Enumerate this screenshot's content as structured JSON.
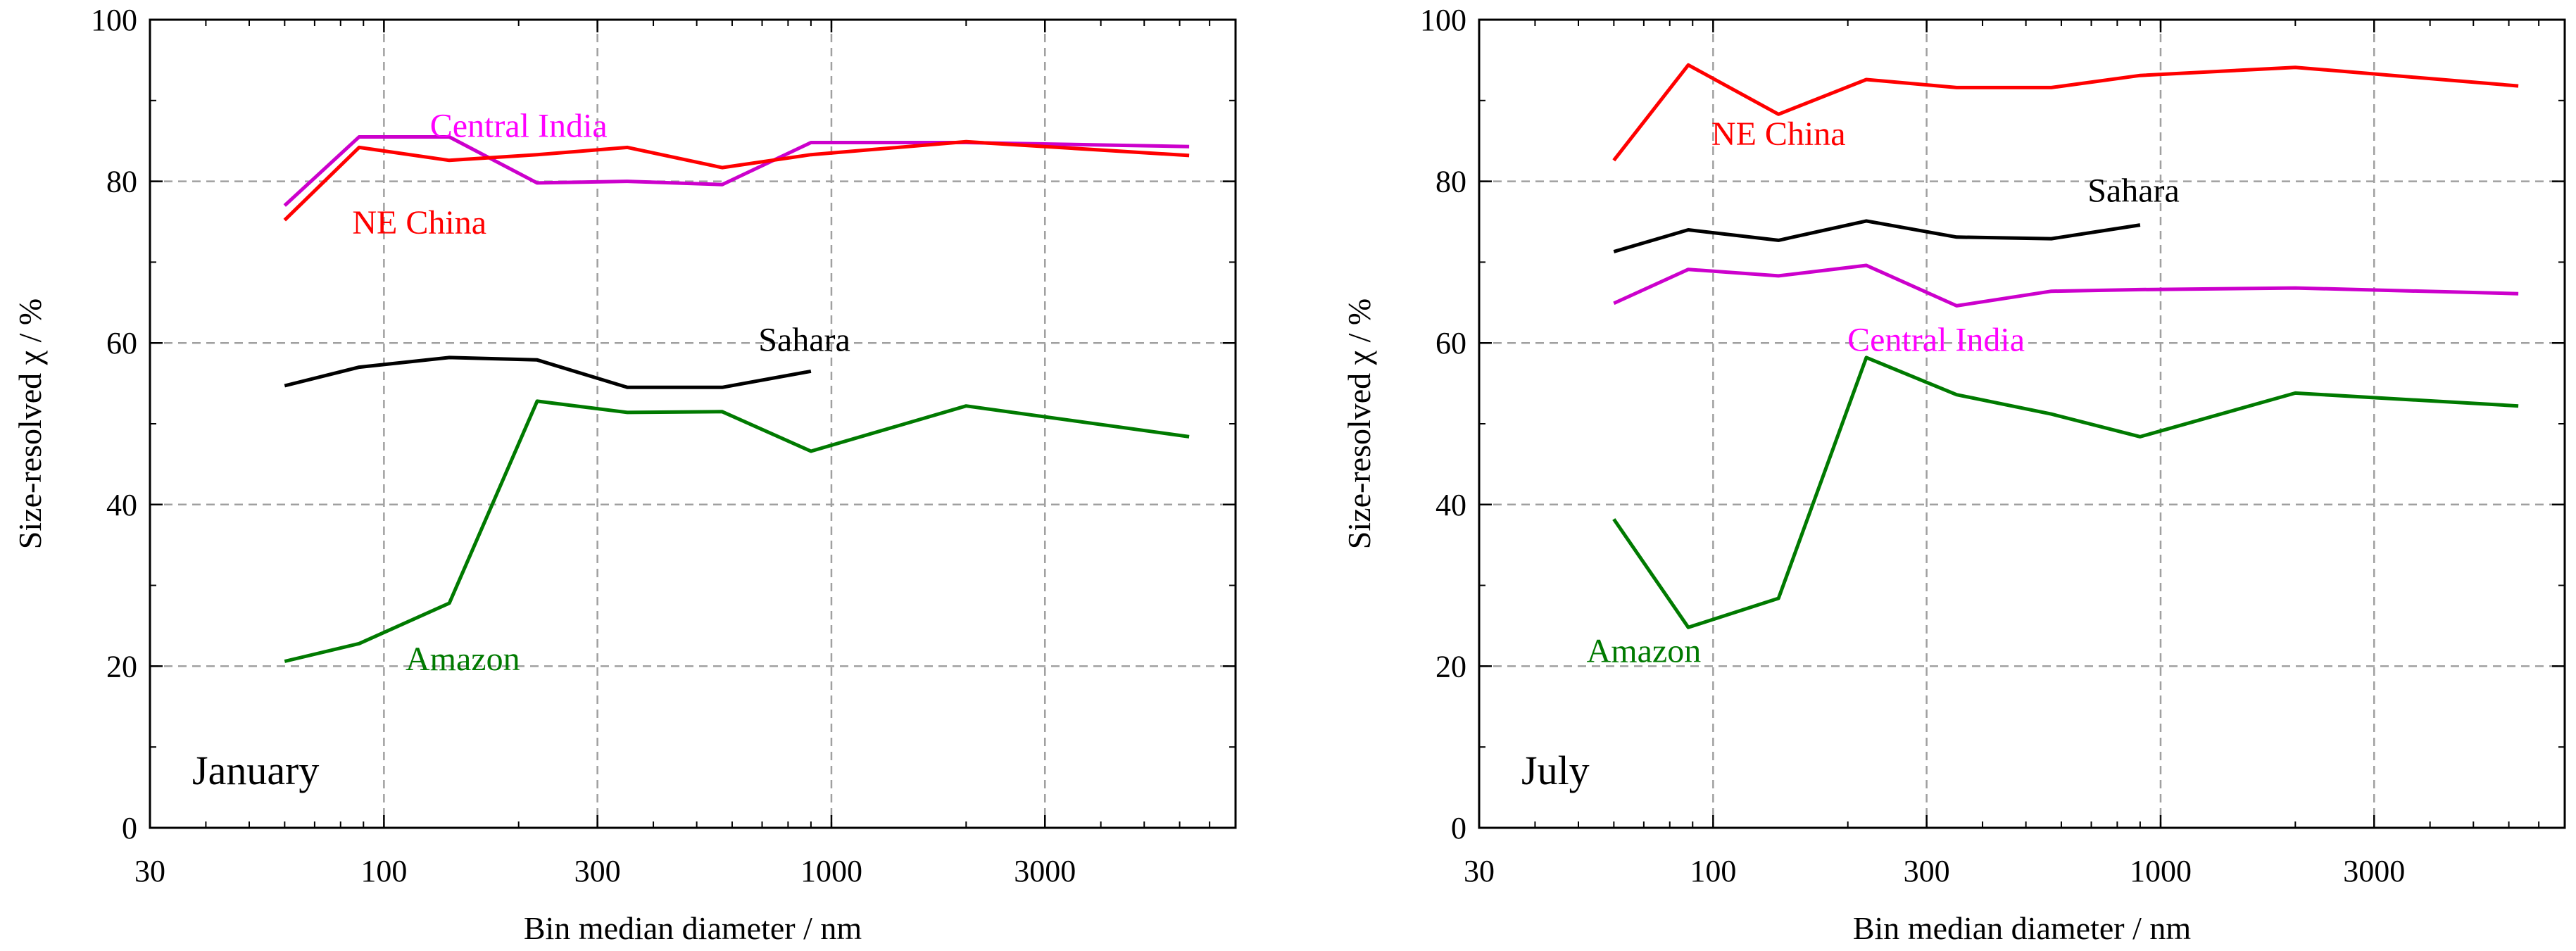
{
  "colors": {
    "ne_china": "#ff0000",
    "central_india": "#cc00cc",
    "central_india_label": "#ff00ff",
    "sahara": "#000000",
    "amazon": "#007a00",
    "grid": "#a0a0a0",
    "axis": "#000000"
  },
  "chart_data": [
    {
      "type": "line",
      "panel_label": "January",
      "xscale": "log",
      "xlim": [
        30,
        8000
      ],
      "ylim": [
        0,
        100
      ],
      "xticks": [
        30,
        100,
        300,
        1000,
        3000
      ],
      "xtick_labels": [
        "30",
        "100",
        "300",
        "1000",
        "3000"
      ],
      "yticks": [
        0,
        20,
        40,
        60,
        80,
        100
      ],
      "ytick_labels": [
        "0",
        "20",
        "40",
        "60",
        "80",
        "100"
      ],
      "xlabel": "Bin median diameter / nm",
      "ylabel": "Size-resolved χ / %",
      "grid": true,
      "series": [
        {
          "name": "Central India",
          "color_key": "central_india",
          "label_color_key": "central_india_label",
          "label_at": [
            200,
            85.5
          ],
          "x": [
            60,
            88,
            140,
            220,
            350,
            570,
            900,
            2000,
            6300
          ],
          "y": [
            77,
            85.5,
            85.5,
            79.8,
            80.0,
            79.6,
            84.8,
            84.8,
            84.3
          ]
        },
        {
          "name": "NE China",
          "color_key": "ne_china",
          "label_color_key": "ne_china",
          "label_at": [
            120,
            73.5
          ],
          "x": [
            60,
            88,
            140,
            220,
            350,
            570,
            900,
            2000,
            6300
          ],
          "y": [
            75.2,
            84.2,
            82.6,
            83.3,
            84.2,
            81.7,
            83.3,
            84.9,
            83.2
          ]
        },
        {
          "name": "Sahara",
          "color_key": "sahara",
          "label_color_key": "sahara",
          "label_at": [
            870,
            59
          ],
          "x": [
            60,
            88,
            140,
            220,
            350,
            570,
            900
          ],
          "y": [
            54.7,
            57.0,
            58.2,
            57.9,
            54.5,
            54.5,
            56.5
          ]
        },
        {
          "name": "Amazon",
          "color_key": "amazon",
          "label_color_key": "amazon",
          "label_at": [
            150,
            19.5
          ],
          "x": [
            60,
            88,
            140,
            220,
            350,
            570,
            900,
            2000,
            6300
          ],
          "y": [
            20.6,
            22.8,
            27.8,
            52.8,
            51.4,
            51.5,
            46.6,
            52.2,
            48.4
          ]
        }
      ]
    },
    {
      "type": "line",
      "panel_label": "July",
      "xscale": "log",
      "xlim": [
        30,
        8000
      ],
      "ylim": [
        0,
        100
      ],
      "xticks": [
        30,
        100,
        300,
        1000,
        3000
      ],
      "xtick_labels": [
        "30",
        "100",
        "300",
        "1000",
        "3000"
      ],
      "yticks": [
        0,
        20,
        40,
        60,
        80,
        100
      ],
      "ytick_labels": [
        "0",
        "20",
        "40",
        "60",
        "80",
        "100"
      ],
      "xlabel": "Bin median diameter / nm",
      "ylabel": "Size-resolved χ / %",
      "grid": true,
      "series": [
        {
          "name": "NE China",
          "color_key": "ne_china",
          "label_color_key": "ne_china",
          "label_at": [
            140,
            84.5
          ],
          "x": [
            60,
            88,
            140,
            220,
            350,
            570,
            900,
            2000,
            6300
          ],
          "y": [
            82.6,
            94.4,
            88.3,
            92.6,
            91.6,
            91.6,
            93.1,
            94.1,
            91.8
          ]
        },
        {
          "name": "Sahara",
          "color_key": "sahara",
          "label_color_key": "sahara",
          "label_at": [
            870,
            77.5
          ],
          "x": [
            60,
            88,
            140,
            220,
            350,
            570,
            900
          ],
          "y": [
            71.3,
            74.0,
            72.7,
            75.1,
            73.1,
            72.9,
            74.6
          ]
        },
        {
          "name": "Central India",
          "color_key": "central_india",
          "label_color_key": "central_india_label",
          "label_at": [
            315,
            59
          ],
          "x": [
            60,
            88,
            140,
            220,
            350,
            570,
            900,
            2000,
            6300
          ],
          "y": [
            64.9,
            69.1,
            68.3,
            69.6,
            64.6,
            66.4,
            66.6,
            66.8,
            66.1
          ]
        },
        {
          "name": "Amazon",
          "color_key": "amazon",
          "label_color_key": "amazon",
          "label_at": [
            70,
            20.5
          ],
          "x": [
            60,
            88,
            140,
            220,
            350,
            570,
            900,
            2000,
            6300
          ],
          "y": [
            38.2,
            24.8,
            28.4,
            58.2,
            53.6,
            51.2,
            48.4,
            53.8,
            52.2
          ]
        }
      ]
    }
  ]
}
